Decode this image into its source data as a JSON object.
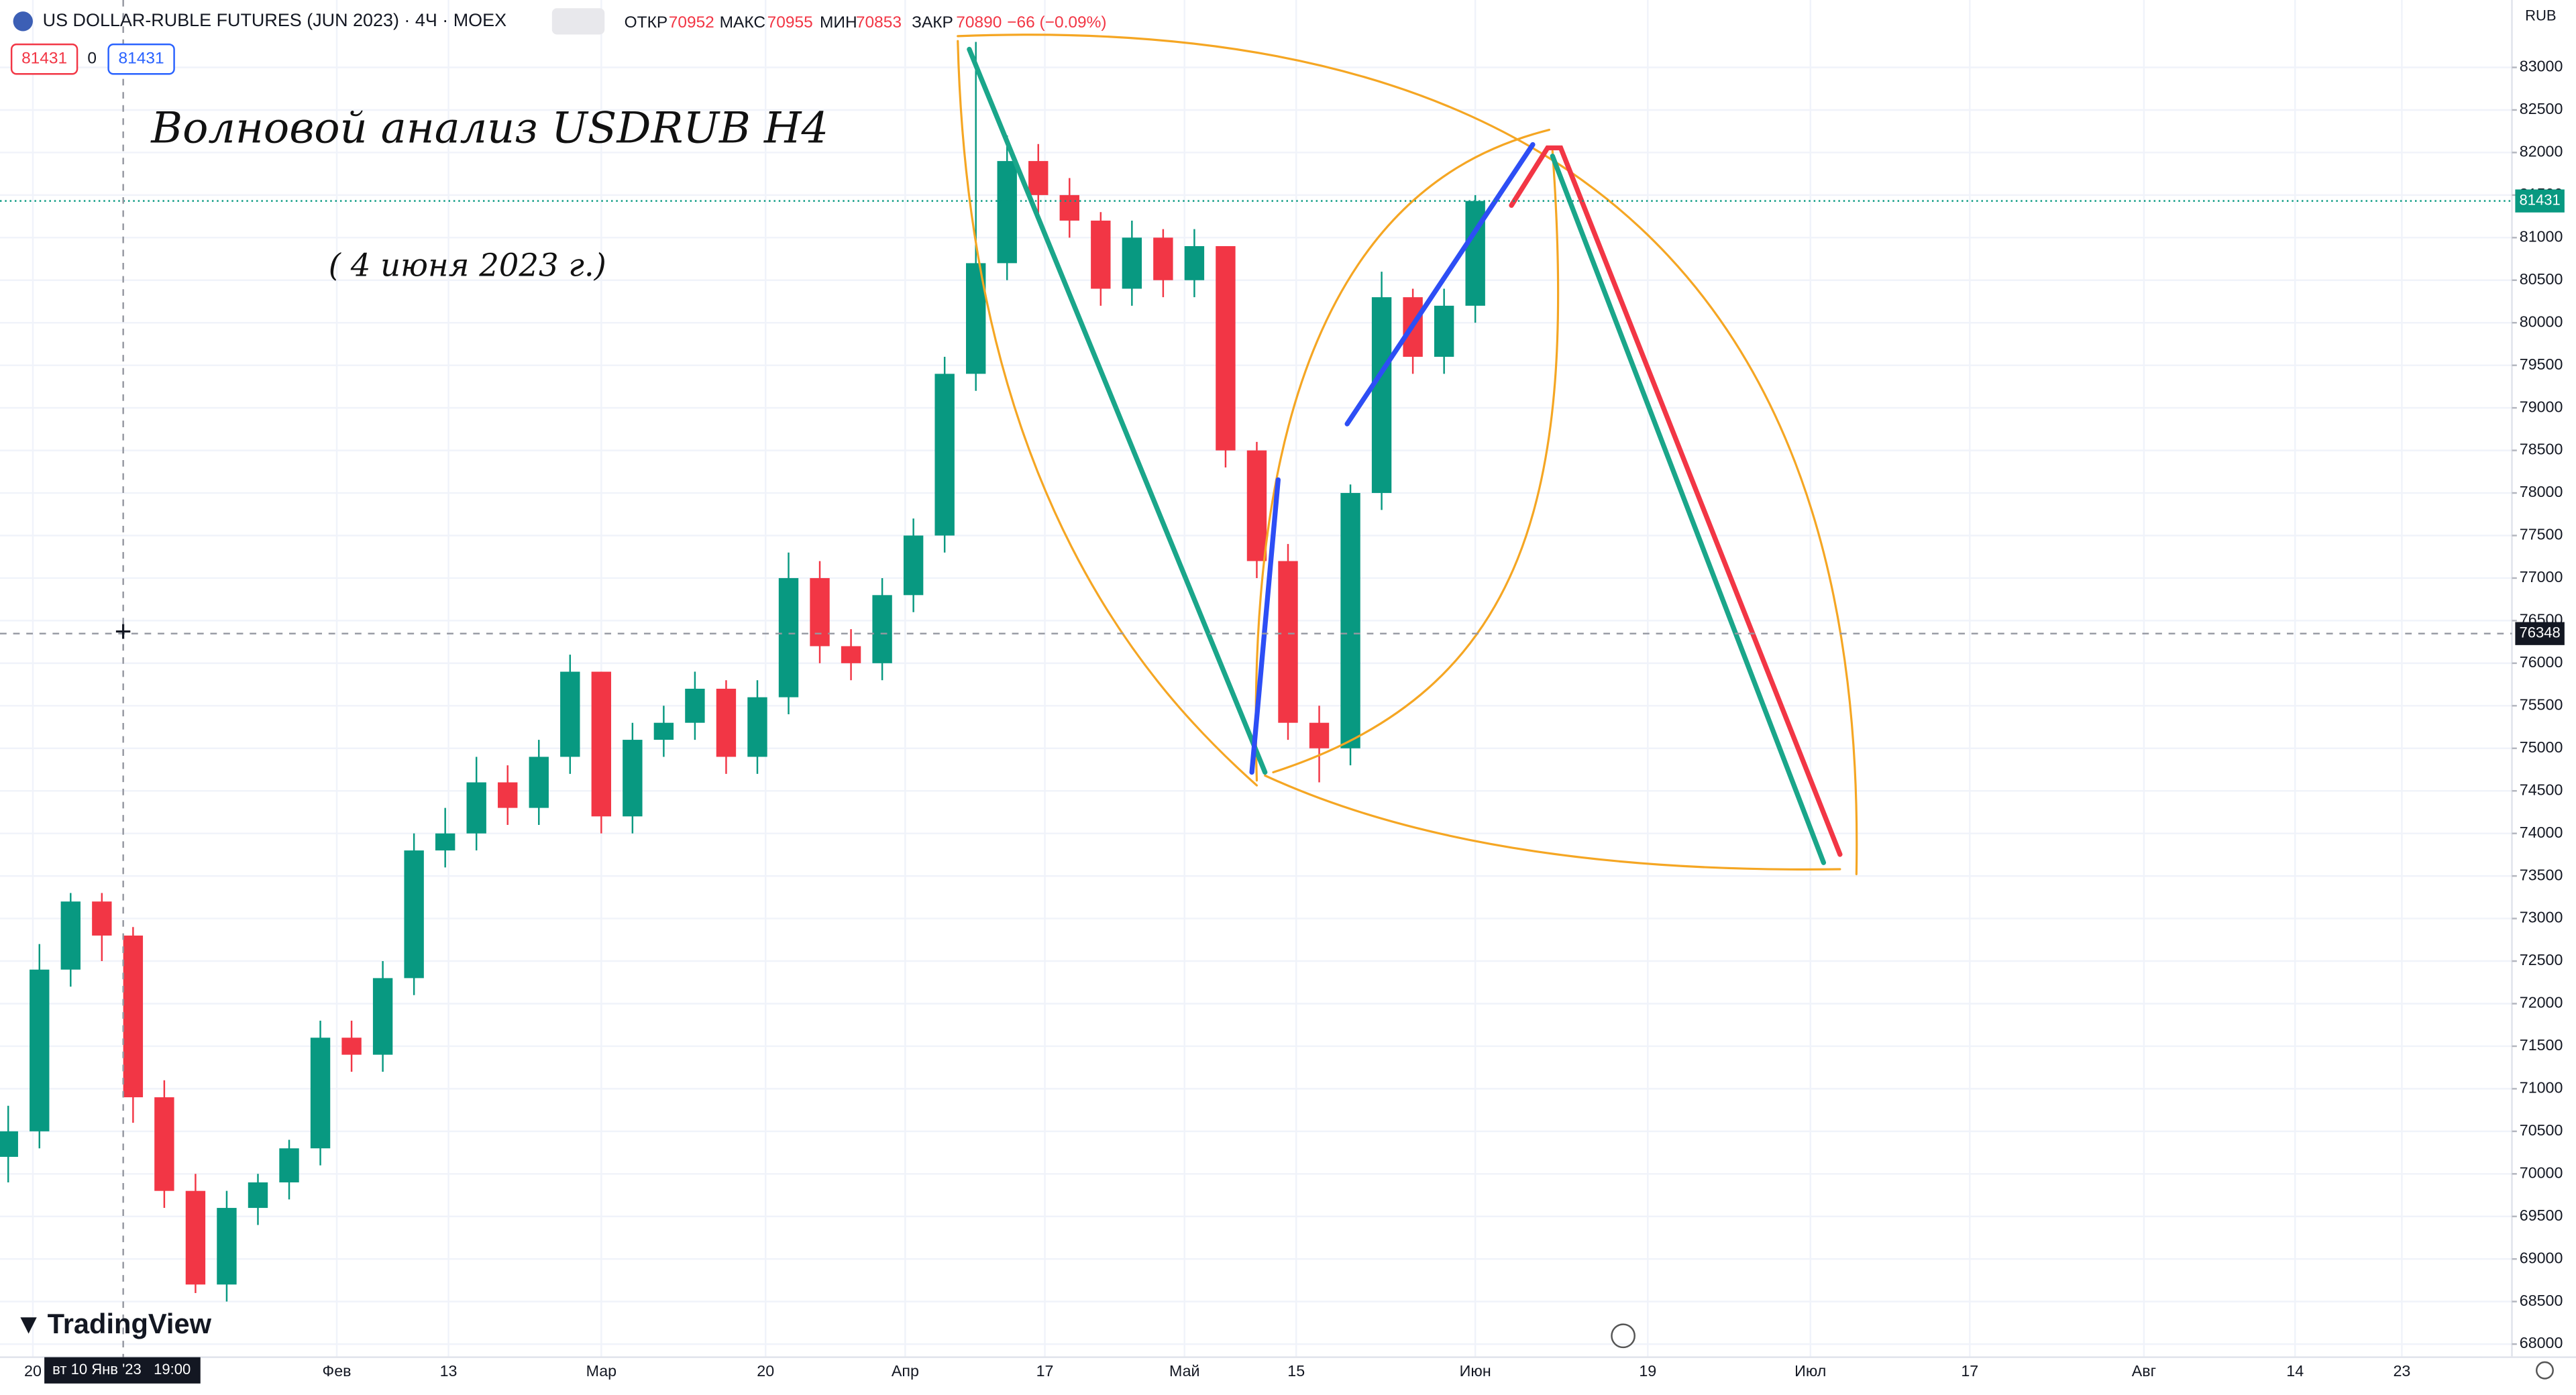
{
  "chart_data": {
    "type": "candlestick",
    "title": "US DOLLAR-RUBLE FUTURES (JUN 2023) · 4Ч · MOEX",
    "stats": [
      {
        "label": "ОТКР",
        "value": 70952
      },
      {
        "label": "МАКС",
        "value": 70955
      },
      {
        "label": "МИН",
        "value": 70853
      },
      {
        "label": "ЗАКР",
        "value": 70890
      }
    ],
    "change_label": "−66 (−0.09%)",
    "bid": 81431,
    "spread": 0,
    "ask": 81431,
    "annotations": [
      "Волновой анализ USDRUB H4",
      "( 4 июня 2023 г.)"
    ],
    "currency": "RUB",
    "brand": "TradingView",
    "last_price": 81431,
    "crosshair": {
      "price": 76348,
      "time_label": "вт 10 Янв '23   19:00"
    },
    "x_labels": [
      "20",
      "Фев",
      "13",
      "Мар",
      "20",
      "Апр",
      "17",
      "Май",
      "15",
      "Июн",
      "19",
      "Июл",
      "17",
      "Авг",
      "14",
      "23"
    ],
    "up_color": "#089981",
    "down_color": "#f23645",
    "ylim": [
      67846,
      83792
    ],
    "yticks": [
      68000,
      68500,
      69000,
      69500,
      70000,
      70500,
      71000,
      71500,
      72000,
      72500,
      73000,
      73500,
      74000,
      74500,
      75000,
      75500,
      76000,
      76500,
      77000,
      77500,
      78000,
      78500,
      79000,
      79500,
      80000,
      80500,
      81000,
      81500,
      82000,
      82500,
      83000
    ],
    "grid": true,
    "open": [
      70200,
      70500,
      72400,
      73200,
      72800,
      70900,
      69800,
      68700,
      69600,
      69900,
      70300,
      71600,
      71400,
      72300,
      73800,
      74000,
      74600,
      74300,
      74900,
      75900,
      74200,
      75100,
      75300,
      75700,
      74900,
      75600,
      77000,
      76200,
      76000,
      76800,
      77500,
      79400,
      80700,
      81900,
      81500,
      81200,
      80400,
      81000,
      80500,
      80900,
      78500,
      77200,
      75300,
      75000,
      78000,
      80300,
      79600,
      80200
    ],
    "high": [
      70800,
      72700,
      73300,
      73300,
      72900,
      71100,
      70000,
      69800,
      70000,
      70400,
      71800,
      71800,
      72500,
      74000,
      74300,
      74900,
      74800,
      75100,
      76100,
      75900,
      75300,
      75500,
      75900,
      75800,
      75800,
      77300,
      77200,
      76400,
      77000,
      77700,
      79600,
      83300,
      82200,
      82100,
      81700,
      81300,
      81200,
      81100,
      81100,
      80900,
      78600,
      77400,
      75500,
      78100,
      80600,
      80400,
      80400,
      81500
    ],
    "low": [
      69900,
      70300,
      72200,
      72500,
      70600,
      69600,
      68600,
      68500,
      69400,
      69700,
      70100,
      71200,
      71200,
      72100,
      73600,
      73800,
      74100,
      74100,
      74700,
      74000,
      74000,
      74900,
      75100,
      74700,
      74700,
      75400,
      76000,
      75800,
      75800,
      76600,
      77300,
      79200,
      80500,
      81200,
      81000,
      80200,
      80200,
      80300,
      80300,
      78300,
      77000,
      75100,
      74600,
      74800,
      77800,
      79400,
      79400,
      80000
    ],
    "close": [
      70500,
      72400,
      73200,
      72800,
      70900,
      69800,
      68700,
      69600,
      69900,
      70300,
      71600,
      71400,
      72300,
      73800,
      74000,
      74600,
      74300,
      74900,
      75900,
      74200,
      75100,
      75300,
      75700,
      74900,
      75600,
      77000,
      76200,
      76000,
      76800,
      77500,
      79400,
      80700,
      81900,
      81500,
      81200,
      80400,
      81000,
      80500,
      80900,
      78500,
      77200,
      75300,
      75000,
      78000,
      80300,
      79600,
      80200,
      81431
    ]
  }
}
